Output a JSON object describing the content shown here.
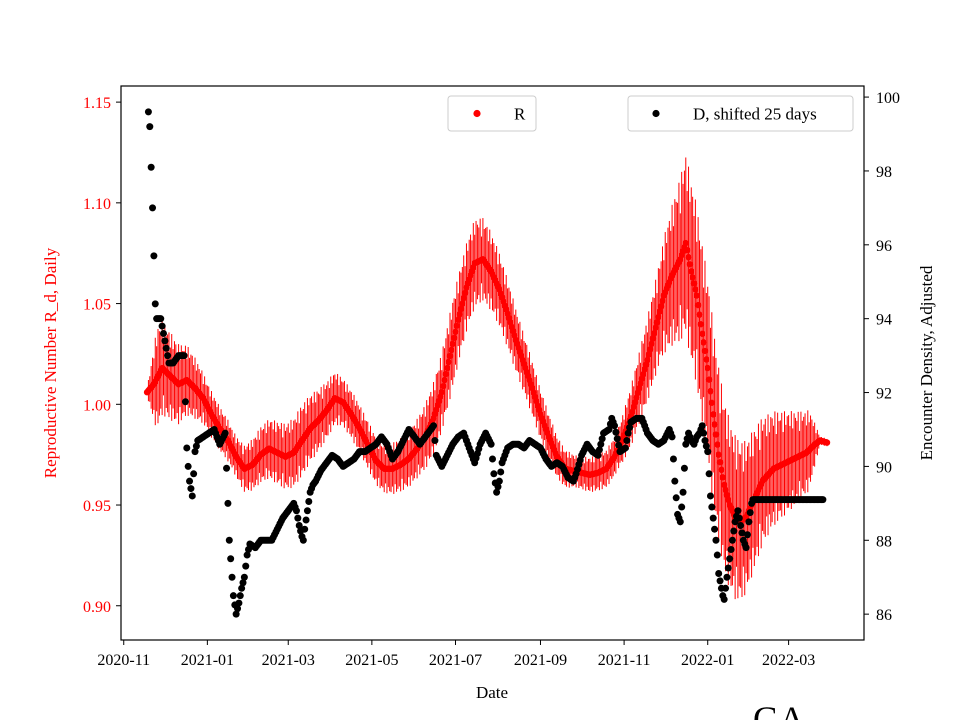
{
  "chart_data": {
    "type": "scatter",
    "title": "",
    "xlabel": "Date",
    "ylabel_left": "Reproductive Number R_d, Daily",
    "ylabel_right": "Encounter Density, Adjusted",
    "corner_label": "GA",
    "x_ticks": [
      "2020-11",
      "2021-01",
      "2021-03",
      "2021-05",
      "2021-07",
      "2021-09",
      "2021-11",
      "2022-01",
      "2022-03"
    ],
    "x_tick_days": [
      0,
      61,
      120,
      181,
      242,
      304,
      365,
      426,
      485
    ],
    "xlim_days": [
      -2,
      540
    ],
    "ylim_left": [
      0.883,
      1.158
    ],
    "ylim_right": [
      85.3,
      100.3
    ],
    "left_ticks": [
      "0.90",
      "0.95",
      "1.00",
      "1.05",
      "1.10",
      "1.15"
    ],
    "right_ticks": [
      "86",
      "88",
      "90",
      "92",
      "94",
      "96",
      "98",
      "100"
    ],
    "colors": {
      "R": "#ff0000",
      "D": "#000000",
      "left_axis": "#ff0000"
    },
    "legend": [
      {
        "label": "R",
        "color": "#ff0000",
        "placement": "top-center"
      },
      {
        "label": "D, shifted 25 days",
        "color": "#000000",
        "placement": "top-right"
      }
    ],
    "series": [
      {
        "name": "R",
        "axis": "left",
        "day_range": [
          17,
          513
        ],
        "R_keypoints": [
          [
            17,
            1.006
          ],
          [
            22,
            1.01
          ],
          [
            28,
            1.018
          ],
          [
            34,
            1.014
          ],
          [
            40,
            1.01
          ],
          [
            46,
            1.012
          ],
          [
            52,
            1.008
          ],
          [
            58,
            1.003
          ],
          [
            64,
            0.995
          ],
          [
            70,
            0.988
          ],
          [
            76,
            0.982
          ],
          [
            82,
            0.974
          ],
          [
            88,
            0.968
          ],
          [
            94,
            0.97
          ],
          [
            100,
            0.975
          ],
          [
            106,
            0.978
          ],
          [
            112,
            0.976
          ],
          [
            118,
            0.974
          ],
          [
            124,
            0.976
          ],
          [
            130,
            0.982
          ],
          [
            136,
            0.988
          ],
          [
            142,
            0.992
          ],
          [
            148,
            0.997
          ],
          [
            154,
            1.003
          ],
          [
            160,
            1.001
          ],
          [
            166,
            0.995
          ],
          [
            172,
            0.988
          ],
          [
            178,
            0.98
          ],
          [
            184,
            0.972
          ],
          [
            190,
            0.968
          ],
          [
            196,
            0.968
          ],
          [
            202,
            0.97
          ],
          [
            208,
            0.973
          ],
          [
            214,
            0.978
          ],
          [
            220,
            0.984
          ],
          [
            226,
            0.993
          ],
          [
            232,
            1.006
          ],
          [
            238,
            1.024
          ],
          [
            244,
            1.042
          ],
          [
            250,
            1.058
          ],
          [
            256,
            1.07
          ],
          [
            262,
            1.072
          ],
          [
            268,
            1.066
          ],
          [
            274,
            1.057
          ],
          [
            280,
            1.045
          ],
          [
            286,
            1.032
          ],
          [
            292,
            1.02
          ],
          [
            298,
            1.008
          ],
          [
            304,
            0.995
          ],
          [
            310,
            0.984
          ],
          [
            316,
            0.974
          ],
          [
            322,
            0.968
          ],
          [
            328,
            0.967
          ],
          [
            334,
            0.966
          ],
          [
            340,
            0.965
          ],
          [
            346,
            0.966
          ],
          [
            352,
            0.968
          ],
          [
            358,
            0.974
          ],
          [
            364,
            0.983
          ],
          [
            370,
            0.994
          ],
          [
            376,
            1.008
          ],
          [
            382,
            1.022
          ],
          [
            388,
            1.038
          ],
          [
            394,
            1.054
          ],
          [
            400,
            1.064
          ],
          [
            406,
            1.072
          ],
          [
            410,
            1.08
          ],
          [
            414,
            1.066
          ],
          [
            418,
            1.054
          ],
          [
            422,
            1.035
          ],
          [
            426,
            1.018
          ],
          [
            430,
            0.995
          ],
          [
            434,
            0.975
          ],
          [
            438,
            0.96
          ],
          [
            442,
            0.95
          ],
          [
            446,
            0.944
          ],
          [
            450,
            0.942
          ],
          [
            454,
            0.944
          ],
          [
            458,
            0.95
          ],
          [
            462,
            0.956
          ],
          [
            466,
            0.962
          ],
          [
            470,
            0.965
          ],
          [
            474,
            0.968
          ],
          [
            480,
            0.97
          ],
          [
            486,
            0.972
          ],
          [
            492,
            0.974
          ],
          [
            498,
            0.976
          ],
          [
            504,
            0.98
          ],
          [
            508,
            0.982
          ],
          [
            513,
            0.981
          ]
        ],
        "error_keypoints": [
          [
            17,
            0.002
          ],
          [
            24,
            0.025
          ],
          [
            40,
            0.02
          ],
          [
            60,
            0.012
          ],
          [
            80,
            0.01
          ],
          [
            100,
            0.014
          ],
          [
            130,
            0.018
          ],
          [
            160,
            0.012
          ],
          [
            190,
            0.012
          ],
          [
            215,
            0.015
          ],
          [
            240,
            0.022
          ],
          [
            256,
            0.022
          ],
          [
            290,
            0.015
          ],
          [
            330,
            0.008
          ],
          [
            360,
            0.01
          ],
          [
            390,
            0.025
          ],
          [
            410,
            0.045
          ],
          [
            430,
            0.045
          ],
          [
            450,
            0.04
          ],
          [
            470,
            0.03
          ],
          [
            500,
            0.02
          ],
          [
            508,
            0.002
          ]
        ]
      },
      {
        "name": "D, shifted 25 days",
        "axis": "right",
        "day_range": [
          18,
          510
        ],
        "D_keypoints": [
          [
            18,
            99.6
          ],
          [
            19,
            99.2
          ],
          [
            20,
            98.1
          ],
          [
            21,
            97.0
          ],
          [
            22,
            95.7
          ],
          [
            23,
            94.4
          ],
          [
            24,
            94.0
          ],
          [
            27,
            94.0
          ],
          [
            29,
            93.6
          ],
          [
            31,
            93.2
          ],
          [
            33,
            92.8
          ],
          [
            36,
            92.8
          ],
          [
            40,
            93.0
          ],
          [
            44,
            93.0
          ],
          [
            46,
            90.5
          ],
          [
            47,
            90.0
          ],
          [
            48,
            89.6
          ],
          [
            49,
            89.4
          ],
          [
            50,
            89.2
          ],
          [
            52,
            90.4
          ],
          [
            54,
            90.7
          ],
          [
            58,
            90.8
          ],
          [
            62,
            90.9
          ],
          [
            66,
            91.0
          ],
          [
            70,
            90.6
          ],
          [
            74,
            90.9
          ],
          [
            76,
            89.0
          ],
          [
            77,
            88.0
          ],
          [
            78,
            87.5
          ],
          [
            79,
            87.0
          ],
          [
            80,
            86.5
          ],
          [
            82,
            86.0
          ],
          [
            84,
            86.3
          ],
          [
            86,
            86.7
          ],
          [
            88,
            87.0
          ],
          [
            90,
            87.6
          ],
          [
            92,
            87.9
          ],
          [
            96,
            87.8
          ],
          [
            100,
            88.0
          ],
          [
            104,
            88.0
          ],
          [
            108,
            88.0
          ],
          [
            112,
            88.3
          ],
          [
            116,
            88.6
          ],
          [
            120,
            88.8
          ],
          [
            124,
            89.0
          ],
          [
            126,
            88.8
          ],
          [
            128,
            88.4
          ],
          [
            130,
            88.1
          ],
          [
            131,
            88.0
          ],
          [
            132,
            88.3
          ],
          [
            134,
            88.8
          ],
          [
            136,
            89.3
          ],
          [
            138,
            89.5
          ],
          [
            140,
            89.6
          ],
          [
            144,
            89.9
          ],
          [
            148,
            90.1
          ],
          [
            152,
            90.3
          ],
          [
            156,
            90.2
          ],
          [
            160,
            90.0
          ],
          [
            164,
            90.1
          ],
          [
            168,
            90.2
          ],
          [
            172,
            90.4
          ],
          [
            176,
            90.4
          ],
          [
            180,
            90.5
          ],
          [
            184,
            90.6
          ],
          [
            188,
            90.8
          ],
          [
            192,
            90.6
          ],
          [
            196,
            90.2
          ],
          [
            200,
            90.4
          ],
          [
            204,
            90.7
          ],
          [
            208,
            91.0
          ],
          [
            212,
            90.8
          ],
          [
            216,
            90.6
          ],
          [
            220,
            90.8
          ],
          [
            224,
            91.0
          ],
          [
            226,
            91.1
          ],
          [
            228,
            90.3
          ],
          [
            232,
            90.0
          ],
          [
            236,
            90.3
          ],
          [
            240,
            90.6
          ],
          [
            244,
            90.8
          ],
          [
            248,
            90.9
          ],
          [
            252,
            90.5
          ],
          [
            256,
            90.1
          ],
          [
            260,
            90.6
          ],
          [
            264,
            90.9
          ],
          [
            268,
            90.6
          ],
          [
            270,
            89.8
          ],
          [
            272,
            89.3
          ],
          [
            274,
            89.6
          ],
          [
            276,
            90.1
          ],
          [
            280,
            90.5
          ],
          [
            284,
            90.6
          ],
          [
            288,
            90.6
          ],
          [
            292,
            90.5
          ],
          [
            296,
            90.7
          ],
          [
            300,
            90.6
          ],
          [
            304,
            90.5
          ],
          [
            308,
            90.2
          ],
          [
            312,
            90.0
          ],
          [
            316,
            90.1
          ],
          [
            320,
            90.0
          ],
          [
            324,
            89.7
          ],
          [
            328,
            89.6
          ],
          [
            330,
            89.8
          ],
          [
            334,
            90.3
          ],
          [
            338,
            90.6
          ],
          [
            342,
            90.4
          ],
          [
            346,
            90.3
          ],
          [
            348,
            90.6
          ],
          [
            350,
            90.9
          ],
          [
            354,
            91.0
          ],
          [
            356,
            91.3
          ],
          [
            358,
            91.1
          ],
          [
            362,
            90.4
          ],
          [
            366,
            90.5
          ],
          [
            368,
            90.9
          ],
          [
            370,
            91.2
          ],
          [
            374,
            91.3
          ],
          [
            378,
            91.3
          ],
          [
            382,
            90.9
          ],
          [
            386,
            90.7
          ],
          [
            390,
            90.6
          ],
          [
            394,
            90.7
          ],
          [
            398,
            91.0
          ],
          [
            400,
            90.8
          ],
          [
            402,
            89.6
          ],
          [
            404,
            88.7
          ],
          [
            406,
            88.5
          ],
          [
            408,
            89.3
          ],
          [
            410,
            90.6
          ],
          [
            412,
            90.9
          ],
          [
            414,
            90.7
          ],
          [
            416,
            90.6
          ],
          [
            418,
            90.8
          ],
          [
            420,
            90.9
          ],
          [
            422,
            91.1
          ],
          [
            424,
            90.7
          ],
          [
            426,
            90.4
          ],
          [
            428,
            89.2
          ],
          [
            430,
            88.6
          ],
          [
            432,
            88.0
          ],
          [
            433,
            87.6
          ],
          [
            434,
            87.1
          ],
          [
            436,
            86.7
          ],
          [
            437,
            86.5
          ],
          [
            438,
            86.4
          ],
          [
            440,
            87.0
          ],
          [
            442,
            87.5
          ],
          [
            444,
            88.0
          ],
          [
            446,
            88.5
          ],
          [
            448,
            88.8
          ],
          [
            450,
            88.4
          ],
          [
            452,
            88.0
          ],
          [
            454,
            87.8
          ],
          [
            456,
            88.5
          ],
          [
            458,
            89.0
          ],
          [
            459,
            89.1
          ],
          [
            470,
            89.1
          ],
          [
            480,
            89.1
          ],
          [
            490,
            89.1
          ],
          [
            500,
            89.1
          ],
          [
            510,
            89.1
          ]
        ]
      }
    ]
  }
}
